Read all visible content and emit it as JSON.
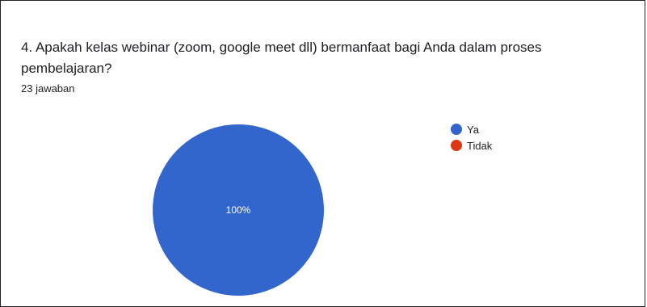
{
  "question": {
    "title": "4. Apakah kelas webinar (zoom, google meet dll) bermanfaat bagi Anda dalam proses pembelajaran?",
    "response_count": "23 jawaban"
  },
  "chart_data": {
    "type": "pie",
    "categories": [
      "Ya",
      "Tidak"
    ],
    "values": [
      100,
      0
    ],
    "unit": "%",
    "data_labels": [
      "100%",
      ""
    ],
    "colors": [
      "#3366cc",
      "#dc3912"
    ],
    "legend_position": "right"
  }
}
